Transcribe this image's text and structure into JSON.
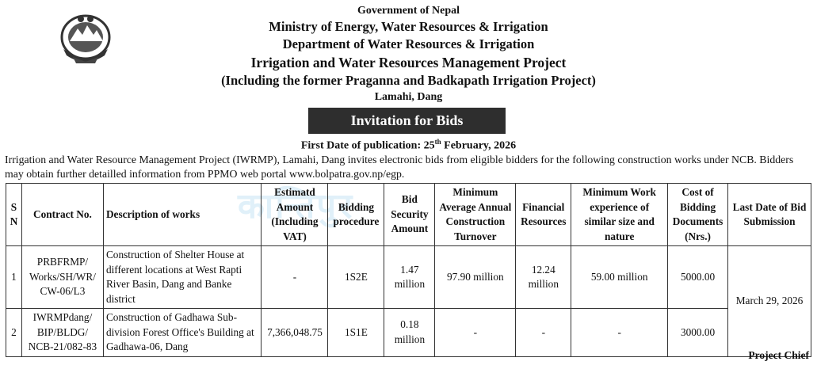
{
  "header": {
    "government": "Government of Nepal",
    "ministry": "Ministry of Energy, Water Resources & Irrigation",
    "department": "Department of Water Resources & Irrigation",
    "project": "Irrigation and Water Resources Management Project",
    "project_note": "(Including the former Praganna and Badkapath Irrigation Project)",
    "location": "Lamahi, Dang"
  },
  "notice_title": "Invitation for Bids",
  "publication": {
    "label": "First Date of publication: 25",
    "suffix": "th",
    "date_rest": " February, 2026"
  },
  "intro_text": "Irrigation and Water Resource Management Project (IWRMP), Lamahi, Dang invites electronic bids from eligible bidders for the following construction works under NCB. Bidders may obtain further detailled information from PPMO web portal www.bolpatra.gov.np/egp.",
  "watermark": "कान्तिपुर",
  "table": {
    "headers": {
      "sn": "S N",
      "contract": "Contract No.",
      "description": "Description of works",
      "estimated": "Estimatd Amount (Including VAT)",
      "procedure": "Bidding procedure",
      "security": "Bid Security Amount",
      "turnover": "Minimum Average Annual Construction Turnover",
      "financial": "Financial Resources",
      "experience": "Minimum Work experience of similar size and nature",
      "cost": "Cost of Bidding Documents (Nrs.)",
      "last_date": "Last Date of Bid Submission"
    },
    "rows": [
      {
        "sn": "1",
        "contract": "PRBFRMP/ Works/SH/WR/ CW-06/L3",
        "description": "Construction of Shelter House at different locations at West Rapti River Basin, Dang and Banke district",
        "estimated": "-",
        "procedure": "1S2E",
        "security": "1.47 million",
        "turnover": "97.90 million",
        "financial": "12.24 million",
        "experience": "59.00 million",
        "cost": "5000.00"
      },
      {
        "sn": "2",
        "contract": "IWRMPdang/ BIP/BLDG/ NCB-21/082-83",
        "description": "Construction of Gadhawa Sub-division Forest Office's Building at Gadhawa-06, Dang",
        "estimated": "7,366,048.75",
        "procedure": "1S1E",
        "security": "0.18 million",
        "turnover": "-",
        "financial": "-",
        "experience": "-",
        "cost": "3000.00"
      }
    ],
    "last_date": "March 29, 2026"
  },
  "signature": "Project Chief",
  "icons": {
    "emblem": "nepal-emblem-icon"
  }
}
